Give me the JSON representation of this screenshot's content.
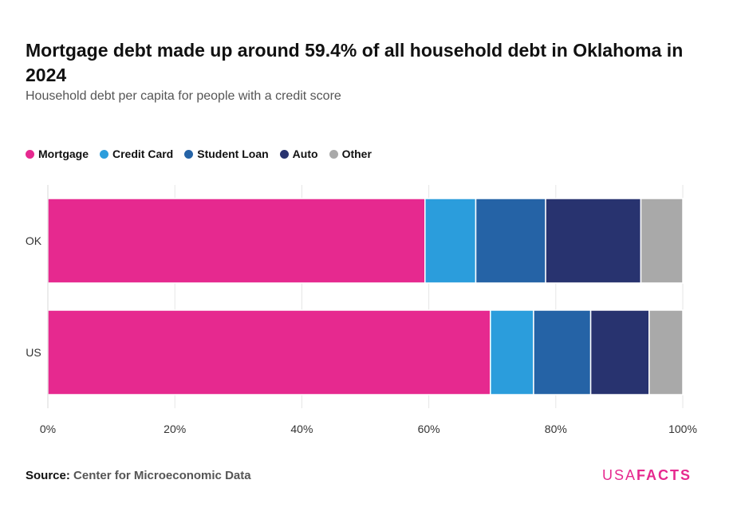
{
  "header": {
    "title": "Mortgage debt made up around 59.4% of all household debt in Oklahoma in 2024",
    "subtitle": "Household debt per capita for people with a credit score"
  },
  "footer": {
    "source_label": "Source:",
    "source_value": "Center for Microeconomic Data",
    "brand_light": "USA",
    "brand_bold": "FACTS"
  },
  "colors": {
    "mortgage": "#e6298f",
    "credit_card": "#2b9ddc",
    "student_loan": "#2563a6",
    "auto": "#28336f",
    "other": "#a9a9a9",
    "brand": "#e6298f"
  },
  "chart_data": {
    "type": "bar",
    "orientation": "horizontal",
    "stacked": true,
    "categories": [
      "OK",
      "US"
    ],
    "series": [
      {
        "name": "Mortgage",
        "color": "#e6298f",
        "values": [
          59.4,
          69.7
        ]
      },
      {
        "name": "Credit Card",
        "color": "#2b9ddc",
        "values": [
          8.0,
          6.8
        ]
      },
      {
        "name": "Student Loan",
        "color": "#2563a6",
        "values": [
          11.0,
          9.0
        ]
      },
      {
        "name": "Auto",
        "color": "#28336f",
        "values": [
          15.0,
          9.2
        ]
      },
      {
        "name": "Other",
        "color": "#a9a9a9",
        "values": [
          6.6,
          5.3
        ]
      }
    ],
    "xlim": [
      0,
      100
    ],
    "xticks": [
      "0%",
      "20%",
      "40%",
      "60%",
      "80%",
      "100%"
    ],
    "grid": true,
    "legend_position": "top-left"
  }
}
